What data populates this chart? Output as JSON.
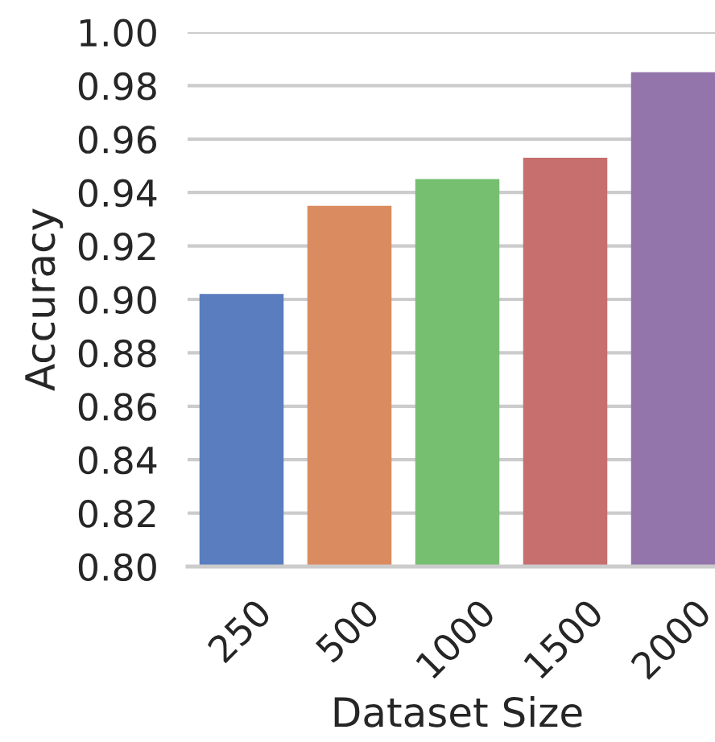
{
  "chart_data": {
    "type": "bar",
    "xlabel": "Dataset Size",
    "ylabel": "Accuracy",
    "categories": [
      "250",
      "500",
      "1000",
      "1500",
      "2000"
    ],
    "values": [
      0.902,
      0.935,
      0.945,
      0.953,
      0.985
    ],
    "colors": [
      "#597dbf",
      "#da8b5f",
      "#76bf71",
      "#c76e6e",
      "#9475ab"
    ],
    "ylim": [
      0.8,
      1.0
    ],
    "yticks": [
      {
        "value": 0.8,
        "label": "0.80"
      },
      {
        "value": 0.82,
        "label": "0.82"
      },
      {
        "value": 0.84,
        "label": "0.84"
      },
      {
        "value": 0.86,
        "label": "0.86"
      },
      {
        "value": 0.88,
        "label": "0.88"
      },
      {
        "value": 0.9,
        "label": "0.90"
      },
      {
        "value": 0.92,
        "label": "0.92"
      },
      {
        "value": 0.94,
        "label": "0.94"
      },
      {
        "value": 0.96,
        "label": "0.96"
      },
      {
        "value": 0.98,
        "label": "0.98"
      },
      {
        "value": 1.0,
        "label": "1.00"
      }
    ],
    "grid": "y"
  }
}
